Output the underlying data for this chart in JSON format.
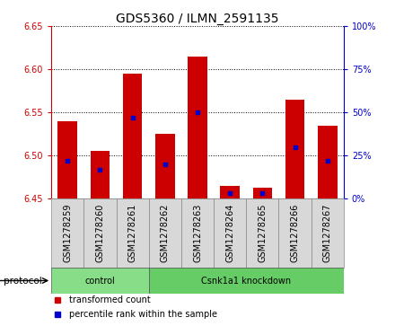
{
  "title": "GDS5360 / ILMN_2591135",
  "samples": [
    "GSM1278259",
    "GSM1278260",
    "GSM1278261",
    "GSM1278262",
    "GSM1278263",
    "GSM1278264",
    "GSM1278265",
    "GSM1278266",
    "GSM1278267"
  ],
  "transformed_count": [
    6.54,
    6.505,
    6.595,
    6.525,
    6.615,
    6.465,
    6.463,
    6.565,
    6.535
  ],
  "percentile_rank": [
    22,
    17,
    47,
    20,
    50,
    3,
    3,
    30,
    22
  ],
  "y_min": 6.45,
  "y_max": 6.65,
  "y_ticks": [
    6.45,
    6.5,
    6.55,
    6.6,
    6.65
  ],
  "y2_ticks": [
    0,
    25,
    50,
    75,
    100
  ],
  "bar_color": "#cc0000",
  "percentile_color": "#0000cc",
  "protocol_groups": [
    {
      "label": "control",
      "start": 0,
      "end": 2,
      "color": "#88dd88"
    },
    {
      "label": "Csnk1a1 knockdown",
      "start": 3,
      "end": 8,
      "color": "#66cc66"
    }
  ],
  "legend_items": [
    {
      "label": "transformed count",
      "color": "#cc0000"
    },
    {
      "label": "percentile rank within the sample",
      "color": "#0000cc"
    }
  ],
  "protocol_label": "protocol",
  "bar_bottom": 6.45,
  "bar_width": 0.6,
  "title_fontsize": 10,
  "tick_fontsize": 7,
  "xtick_fontsize": 7,
  "sample_box_color": "#d8d8d8",
  "sample_box_edge": "#888888",
  "grid_color": "#000000",
  "left_spine_color": "#cc0000",
  "right_spine_color": "#0000cc"
}
